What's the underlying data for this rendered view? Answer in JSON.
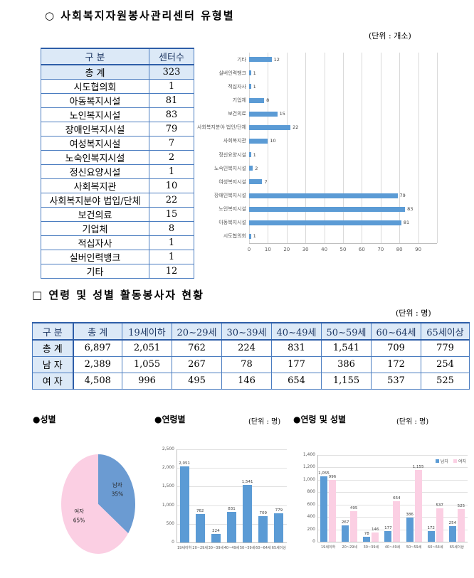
{
  "sections": {
    "centers": {
      "title": "○ 사회복지자원봉사관리센터 유형별",
      "unit": "(단위 : 개소)"
    },
    "volunteers": {
      "title": "□ 연령 및 성별 활동봉사자 현황",
      "unit": "(단위 : 명)"
    }
  },
  "center_table": {
    "headers": [
      "구    분",
      "센터수"
    ],
    "rows": [
      {
        "label": "총    계",
        "value": "323",
        "highlight": true
      },
      {
        "label": "시도협의회",
        "value": "1"
      },
      {
        "label": "아동복지시설",
        "value": "81"
      },
      {
        "label": "노인복지시설",
        "value": "83"
      },
      {
        "label": "장애인복지시설",
        "value": "79"
      },
      {
        "label": "여성복지시설",
        "value": "7"
      },
      {
        "label": "노숙인복지시설",
        "value": "2"
      },
      {
        "label": "정신요양시설",
        "value": "1"
      },
      {
        "label": "사회복지관",
        "value": "10"
      },
      {
        "label": "사회복지분야 법입/단체",
        "value": "22"
      },
      {
        "label": "보건의료",
        "value": "15"
      },
      {
        "label": "기업체",
        "value": "8"
      },
      {
        "label": "적십자사",
        "value": "1"
      },
      {
        "label": "실버인력뱅크",
        "value": "1"
      },
      {
        "label": "기타",
        "value": "12"
      }
    ]
  },
  "volunteer_table": {
    "headers": [
      "구 분",
      "총 계",
      "19세이하",
      "20~29세",
      "30~39세",
      "40~49세",
      "50~59세",
      "60~64세",
      "65세이상"
    ],
    "rows": [
      {
        "label": "총 계",
        "values": [
          "6,897",
          "2,051",
          "762",
          "224",
          "831",
          "1,541",
          "709",
          "779"
        ]
      },
      {
        "label": "남 자",
        "values": [
          "2,389",
          "1,055",
          "267",
          "78",
          "177",
          "386",
          "172",
          "254"
        ]
      },
      {
        "label": "여 자",
        "values": [
          "4,508",
          "996",
          "495",
          "146",
          "654",
          "1,155",
          "537",
          "525"
        ]
      }
    ]
  },
  "bottom_charts": {
    "gender_title": "●성별",
    "age_title": "●연령별",
    "age_unit": "(단위 : 명)",
    "age_gender_title": "●연령 및 성별",
    "age_gender_unit": "(단위 : 명)"
  },
  "colors": {
    "bar_blue": "#5b9bd5",
    "pie_blue": "#6b9bd2",
    "pink": "#fbcfe3",
    "table_fill": "#dce9f7",
    "table_border": "#4a7cc0"
  },
  "chart_data": [
    {
      "id": "centers-by-type",
      "type": "bar",
      "orientation": "horizontal",
      "categories": [
        "기타",
        "실버인력뱅크",
        "적십자사",
        "기업체",
        "보건의료",
        "사회복지분야 법인/단체",
        "사회복지관",
        "정신요양시설",
        "노숙인복지시설",
        "여성복지시설",
        "장애인복지시설",
        "노인복지시설",
        "아동복지시설",
        "시도협의회"
      ],
      "values": [
        12,
        1,
        1,
        8,
        15,
        22,
        10,
        1,
        2,
        7,
        79,
        83,
        81,
        1
      ],
      "xticks": [
        0,
        10,
        20,
        30,
        40,
        50,
        60,
        70,
        80,
        90
      ],
      "xlim": [
        0,
        100
      ],
      "grid": true,
      "legend_position": "none",
      "bar_color": "#5b9bd5"
    },
    {
      "id": "gender-share",
      "type": "pie",
      "slices": [
        {
          "label": "남자",
          "pct": 35,
          "color": "#6b9bd2"
        },
        {
          "label": "여자",
          "pct": 65,
          "color": "#fbcfe3"
        }
      ]
    },
    {
      "id": "volunteers-by-age",
      "type": "bar",
      "categories": [
        "19세이하",
        "20~29세",
        "30~39세",
        "40~49세",
        "50~59세",
        "60~64세",
        "65세이상"
      ],
      "values": [
        2051,
        762,
        224,
        831,
        1541,
        709,
        779
      ],
      "ylim": [
        0,
        2500
      ],
      "ystep": 500,
      "grid": true,
      "bar_color": "#5b9bd5"
    },
    {
      "id": "volunteers-by-age-gender",
      "type": "bar",
      "grouped": true,
      "categories": [
        "19세이하",
        "20~29세",
        "30~39세",
        "40~49세",
        "50~59세",
        "60~64세",
        "65세이상"
      ],
      "series": [
        {
          "name": "남자",
          "color": "#5b9bd5",
          "values": [
            1055,
            267,
            78,
            177,
            386,
            172,
            254
          ]
        },
        {
          "name": "여자",
          "color": "#fbcfe3",
          "values": [
            996,
            495,
            146,
            654,
            1155,
            537,
            525
          ]
        }
      ],
      "ylim": [
        0,
        1400
      ],
      "ystep": 200,
      "grid": true,
      "legend_position": "top-right"
    }
  ]
}
